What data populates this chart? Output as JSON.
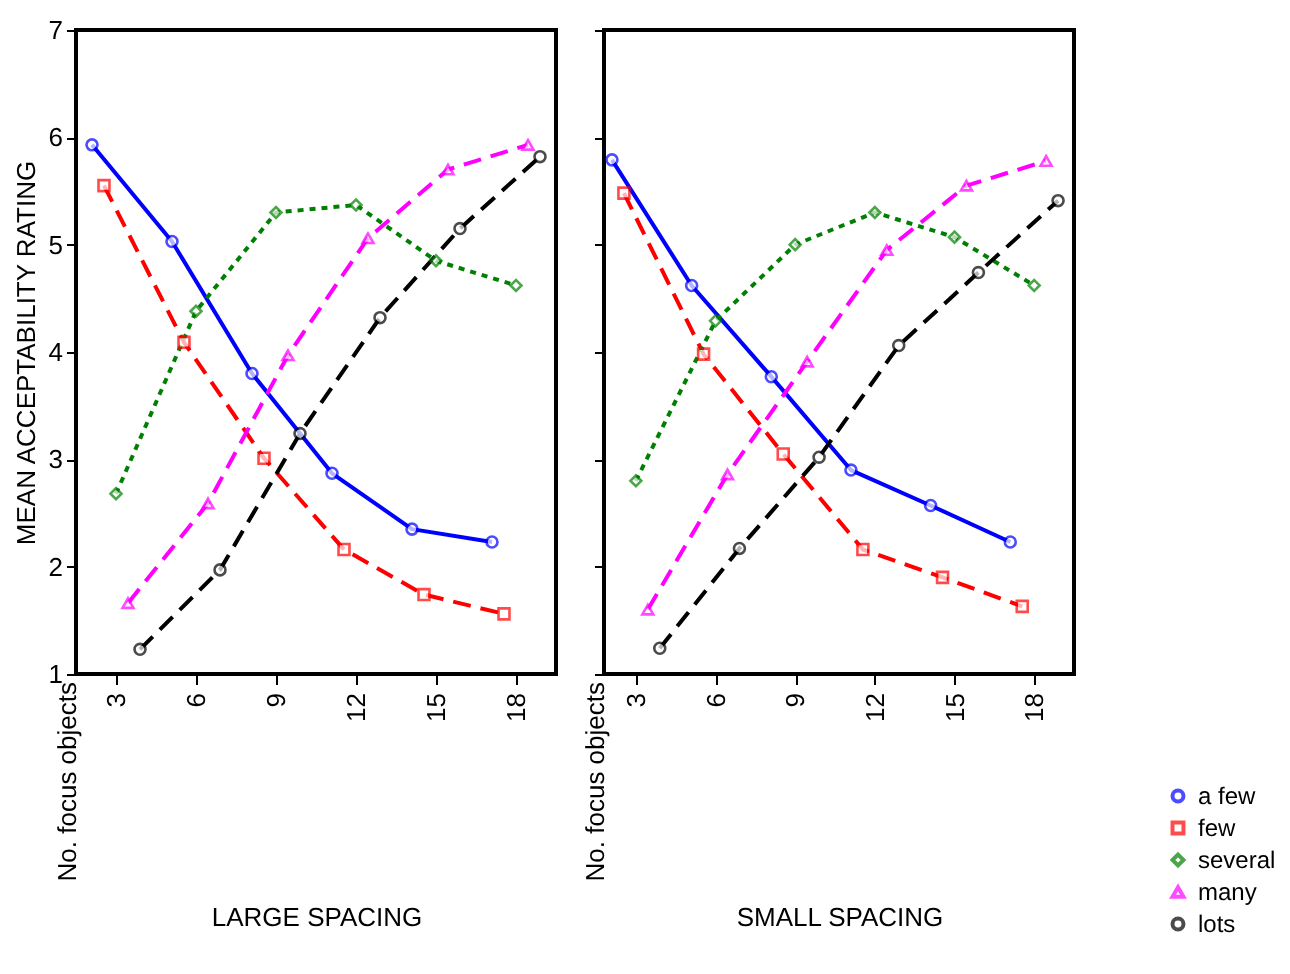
{
  "chart_data": [
    {
      "type": "line",
      "xlabel": "LARGE SPACING",
      "legend": "bottom right",
      "ylabel": "MEAN ACCEPTABILITY RATING",
      "annotations": [
        "No. focus objects"
      ],
      "xlim": [
        1.5,
        19.5
      ],
      "xticks": [
        3,
        6,
        9,
        12,
        15,
        18
      ],
      "ylim": [
        1,
        7
      ],
      "yticks": [
        1,
        2,
        3,
        4,
        5,
        6,
        7
      ],
      "grid": false,
      "series": [
        {
          "name": "a few",
          "color": "#0000ff",
          "marker": "circle",
          "line_style": "solid",
          "x": [
            2.1,
            5.1,
            8.1,
            11.1,
            14.1,
            17.1
          ],
          "values": [
            5.93,
            5.03,
            3.8,
            2.87,
            2.35,
            2.23
          ]
        },
        {
          "name": "few",
          "color": "#ff0000",
          "marker": "square",
          "line_style": "dashed",
          "x": [
            2.55,
            5.55,
            8.55,
            11.55,
            14.55,
            17.55
          ],
          "values": [
            5.55,
            4.09,
            3.01,
            2.16,
            1.74,
            1.56
          ]
        },
        {
          "name": "several",
          "color": "#008000",
          "marker": "diamond",
          "line_style": "dotted",
          "x": [
            3,
            6,
            9,
            12,
            15,
            18
          ],
          "values": [
            2.68,
            4.38,
            5.3,
            5.37,
            4.85,
            4.62
          ]
        },
        {
          "name": "many",
          "color": "#ff00ff",
          "marker": "triangle",
          "line_style": "dashed",
          "x": [
            3.45,
            6.45,
            9.45,
            12.45,
            15.45,
            18.45
          ],
          "values": [
            1.66,
            2.59,
            3.97,
            5.06,
            5.7,
            5.93
          ]
        },
        {
          "name": "lots",
          "color": "#000000",
          "marker": "circle",
          "line_style": "dashed",
          "x": [
            3.9,
            6.9,
            9.9,
            12.9,
            15.9,
            18.9
          ],
          "values": [
            1.23,
            1.97,
            3.24,
            4.32,
            5.15,
            5.82
          ]
        }
      ]
    },
    {
      "type": "line",
      "xlabel": "SMALL SPACING",
      "annotations": [
        "No. focus objects"
      ],
      "xlim": [
        1.8,
        19.5
      ],
      "xticks": [
        3,
        6,
        9,
        12,
        15,
        18
      ],
      "ylim": [
        1,
        7
      ],
      "yticks": [
        1,
        2,
        3,
        4,
        5,
        6,
        7
      ],
      "grid": false,
      "legend": "bottom right",
      "tick_labels": "x",
      "series": [
        {
          "name": "a few",
          "color": "#0000ff",
          "marker": "circle",
          "line_style": "solid",
          "x": [
            2.1,
            5.1,
            8.1,
            11.1,
            14.1,
            17.1
          ],
          "values": [
            5.79,
            4.62,
            3.77,
            2.9,
            2.57,
            2.23
          ]
        },
        {
          "name": "few",
          "color": "#ff0000",
          "marker": "square",
          "line_style": "dashed",
          "x": [
            2.55,
            5.55,
            8.55,
            11.55,
            14.55,
            17.55
          ],
          "values": [
            5.48,
            3.98,
            3.05,
            2.16,
            1.9,
            1.63
          ]
        },
        {
          "name": "several",
          "color": "#008000",
          "marker": "diamond",
          "line_style": "dotted",
          "x": [
            3,
            6,
            9,
            12,
            15,
            18
          ],
          "values": [
            2.8,
            4.29,
            5.0,
            5.3,
            5.07,
            4.62
          ]
        },
        {
          "name": "many",
          "color": "#ff00ff",
          "marker": "triangle",
          "line_style": "dashed",
          "x": [
            3.45,
            6.45,
            9.45,
            12.45,
            15.45,
            18.45
          ],
          "values": [
            1.6,
            2.86,
            3.91,
            4.95,
            5.55,
            5.78
          ]
        },
        {
          "name": "lots",
          "color": "#000000",
          "marker": "circle",
          "line_style": "dashed",
          "x": [
            3.9,
            6.9,
            9.9,
            12.9,
            15.9,
            18.9
          ],
          "values": [
            1.24,
            2.17,
            3.02,
            4.06,
            4.74,
            5.41
          ]
        }
      ]
    }
  ]
}
